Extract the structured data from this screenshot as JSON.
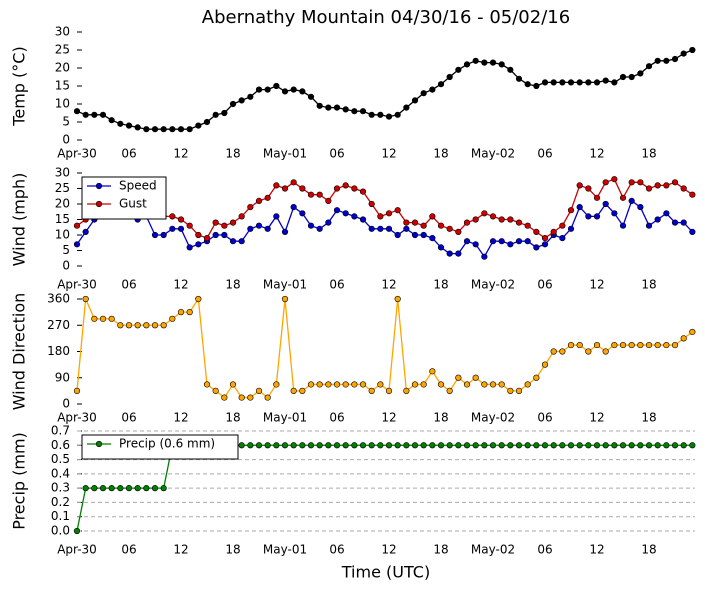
{
  "chart_data": [
    {
      "type": "line",
      "title": "Abernathy Mountain 04/30/16 - 05/02/16",
      "ylabel": "Temp (°C)",
      "categories": [
        "Apr-30",
        null,
        null,
        null,
        null,
        null,
        "06",
        null,
        null,
        null,
        null,
        null,
        "12",
        null,
        null,
        null,
        null,
        null,
        "18",
        null,
        null,
        null,
        null,
        null,
        "May-01",
        null,
        null,
        null,
        null,
        null,
        "06",
        null,
        null,
        null,
        null,
        null,
        "12",
        null,
        null,
        null,
        null,
        null,
        "18",
        null,
        null,
        null,
        null,
        null,
        "May-02",
        null,
        null,
        null,
        null,
        null,
        "06",
        null,
        null,
        null,
        null,
        null,
        "12",
        null,
        null,
        null,
        null,
        null,
        "18",
        null,
        null,
        null,
        null,
        null
      ],
      "ylim": [
        0,
        30
      ],
      "yticks": [
        0,
        5,
        10,
        15,
        20,
        25,
        30
      ],
      "grid": false,
      "series": [
        {
          "name": null,
          "color": "#000000",
          "values": [
            8,
            7,
            7,
            7,
            5.5,
            4.5,
            4,
            3.5,
            3,
            3,
            3,
            3,
            3,
            3,
            4,
            5,
            7,
            7.5,
            10,
            11,
            12,
            14,
            14,
            15,
            13.5,
            14,
            13.5,
            12,
            9.5,
            9,
            9,
            8.5,
            8,
            8,
            7,
            7,
            6.5,
            7,
            9,
            11,
            13,
            14,
            15.5,
            17.5,
            19.5,
            21,
            22,
            21.5,
            21.5,
            21,
            19.5,
            17,
            15.5,
            15,
            16,
            16,
            16,
            16,
            16,
            16,
            16,
            16.5,
            16,
            17.5,
            17.5,
            18.5,
            20.5,
            22,
            22,
            22.5,
            24,
            25
          ]
        }
      ]
    },
    {
      "type": "line",
      "ylabel": "Wind (mph)",
      "legend": "upper left",
      "categories": [
        "Apr-30",
        null,
        null,
        null,
        null,
        null,
        "06",
        null,
        null,
        null,
        null,
        null,
        "12",
        null,
        null,
        null,
        null,
        null,
        "18",
        null,
        null,
        null,
        null,
        null,
        "May-01",
        null,
        null,
        null,
        null,
        null,
        "06",
        null,
        null,
        null,
        null,
        null,
        "12",
        null,
        null,
        null,
        null,
        null,
        "18",
        null,
        null,
        null,
        null,
        null,
        "May-02",
        null,
        null,
        null,
        null,
        null,
        "06",
        null,
        null,
        null,
        null,
        null,
        "12",
        null,
        null,
        null,
        null,
        null,
        "18",
        null,
        null,
        null,
        null,
        null
      ],
      "ylim": [
        0,
        30
      ],
      "yticks": [
        0,
        5,
        10,
        15,
        20,
        25,
        30
      ],
      "grid": false,
      "series": [
        {
          "name": "Speed",
          "color": "#0000cc",
          "values": [
            7,
            11,
            15,
            18,
            18,
            17,
            17,
            15,
            16,
            10,
            10,
            12,
            12,
            6,
            7,
            8,
            10,
            10,
            8,
            8,
            12,
            13,
            12,
            16,
            11,
            19,
            17,
            13,
            12,
            14,
            18,
            17,
            16,
            15,
            12,
            12,
            12,
            10,
            12,
            10,
            10,
            9,
            6,
            4,
            4,
            8,
            7,
            3,
            8,
            8,
            7,
            8,
            8,
            6,
            7,
            10,
            9,
            12,
            19,
            16,
            16,
            20,
            17,
            13,
            21,
            19,
            13,
            15,
            17,
            14,
            14,
            11
          ]
        },
        {
          "name": "Gust",
          "color": "#cc0000",
          "values": [
            13,
            15,
            18,
            19,
            19,
            18,
            17,
            17,
            17,
            16,
            16,
            16,
            15,
            13,
            10,
            9,
            14,
            13,
            14,
            16,
            19,
            21,
            22,
            26,
            25,
            27,
            25,
            23,
            23,
            21,
            25,
            26,
            25,
            24,
            20,
            16,
            17,
            18,
            14,
            14,
            13,
            16,
            13,
            12,
            11,
            14,
            15,
            17,
            16,
            15,
            15,
            14,
            13,
            11,
            9,
            11,
            13,
            18,
            26,
            25,
            22,
            27,
            28,
            22,
            27,
            27,
            25,
            26,
            26,
            27,
            25,
            23
          ]
        }
      ]
    },
    {
      "type": "line",
      "ylabel": "Wind Direction",
      "categories": [
        "Apr-30",
        null,
        null,
        null,
        null,
        null,
        "06",
        null,
        null,
        null,
        null,
        null,
        "12",
        null,
        null,
        null,
        null,
        null,
        "18",
        null,
        null,
        null,
        null,
        null,
        "May-01",
        null,
        null,
        null,
        null,
        null,
        "06",
        null,
        null,
        null,
        null,
        null,
        "12",
        null,
        null,
        null,
        null,
        null,
        "18",
        null,
        null,
        null,
        null,
        null,
        "May-02",
        null,
        null,
        null,
        null,
        null,
        "06",
        null,
        null,
        null,
        null,
        null,
        "12",
        null,
        null,
        null,
        null,
        null,
        "18",
        null,
        null,
        null,
        null,
        null
      ],
      "ylim": [
        0,
        360
      ],
      "yticks": [
        0,
        90,
        180,
        270,
        360
      ],
      "grid": false,
      "series": [
        {
          "name": null,
          "color": "#ffa500",
          "values": [
            45,
            360,
            292,
            292,
            292,
            270,
            270,
            270,
            270,
            270,
            270,
            292,
            315,
            315,
            360,
            67,
            45,
            22,
            67,
            22,
            22,
            45,
            22,
            67,
            360,
            45,
            45,
            67,
            67,
            67,
            67,
            67,
            67,
            67,
            45,
            67,
            45,
            360,
            45,
            67,
            67,
            112,
            67,
            45,
            90,
            67,
            90,
            67,
            67,
            67,
            45,
            45,
            67,
            90,
            135,
            180,
            180,
            202,
            202,
            180,
            202,
            180,
            202,
            202,
            202,
            202,
            202,
            202,
            202,
            202,
            225,
            247
          ]
        }
      ]
    },
    {
      "type": "line",
      "ylabel": "Precip (mm)",
      "xlabel": "Time (UTC)",
      "legend": "upper left",
      "categories": [
        "Apr-30",
        null,
        null,
        null,
        null,
        null,
        "06",
        null,
        null,
        null,
        null,
        null,
        "12",
        null,
        null,
        null,
        null,
        null,
        "18",
        null,
        null,
        null,
        null,
        null,
        "May-01",
        null,
        null,
        null,
        null,
        null,
        "06",
        null,
        null,
        null,
        null,
        null,
        "12",
        null,
        null,
        null,
        null,
        null,
        "18",
        null,
        null,
        null,
        null,
        null,
        "May-02",
        null,
        null,
        null,
        null,
        null,
        "06",
        null,
        null,
        null,
        null,
        null,
        "12",
        null,
        null,
        null,
        null,
        null,
        "18",
        null,
        null,
        null,
        null,
        null
      ],
      "ylim": [
        0,
        0.7
      ],
      "yticks": [
        {
          "value": 0,
          "label": "0.0"
        },
        0.1,
        0.2,
        0.3,
        0.4,
        0.5,
        0.6,
        0.7
      ],
      "grid": true,
      "series": [
        {
          "name": "Precip (0.6 mm)",
          "color": "#007f00",
          "values": [
            0,
            0.3,
            0.3,
            0.3,
            0.3,
            0.3,
            0.3,
            0.3,
            0.3,
            0.3,
            0.3,
            0.6,
            0.6,
            0.6,
            0.6,
            0.6,
            0.6,
            0.6,
            0.6,
            0.6,
            0.6,
            0.6,
            0.6,
            0.6,
            0.6,
            0.6,
            0.6,
            0.6,
            0.6,
            0.6,
            0.6,
            0.6,
            0.6,
            0.6,
            0.6,
            0.6,
            0.6,
            0.6,
            0.6,
            0.6,
            0.6,
            0.6,
            0.6,
            0.6,
            0.6,
            0.6,
            0.6,
            0.6,
            0.6,
            0.6,
            0.6,
            0.6,
            0.6,
            0.6,
            0.6,
            0.6,
            0.6,
            0.6,
            0.6,
            0.6,
            0.6,
            0.6,
            0.6,
            0.6,
            0.6,
            0.6,
            0.6,
            0.6,
            0.6,
            0.6,
            0.6,
            0.6
          ]
        }
      ]
    }
  ]
}
